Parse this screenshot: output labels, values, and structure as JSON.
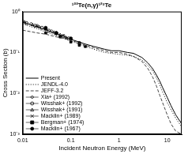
{
  "chart_data": {
    "type": "line",
    "title": "¹²²Te(n,γ)¹²³Te",
    "x_label": "Incident Neutron Energy (MeV)",
    "y_label": "Cross Section (b)",
    "log": true,
    "grid": false,
    "legend": "bottom-left",
    "xlim": [
      0.01,
      20
    ],
    "xticks": [
      0.01,
      0.1,
      1,
      10
    ],
    "ylim": [
      0.001,
      1
    ],
    "yticks": [
      {
        "value": 0.001,
        "label": "10⁻³"
      },
      {
        "value": 0.01,
        "label": "10⁻²"
      },
      {
        "value": 0.1,
        "label": "10⁻¹"
      },
      {
        "value": 1,
        "label": "10⁰"
      }
    ],
    "series": [
      {
        "name": "Present",
        "type": "line",
        "line_style": "solid",
        "color": "#000000",
        "x": [
          0.01,
          0.02,
          0.03,
          0.05,
          0.1,
          0.2,
          0.3,
          0.5,
          0.7,
          1,
          1.5,
          2,
          3,
          4,
          5,
          6,
          7,
          8,
          10,
          12,
          15,
          20
        ],
        "values": [
          0.55,
          0.42,
          0.36,
          0.29,
          0.21,
          0.16,
          0.14,
          0.12,
          0.11,
          0.11,
          0.1,
          0.095,
          0.075,
          0.055,
          0.04,
          0.028,
          0.02,
          0.014,
          0.008,
          0.005,
          0.003,
          0.0018
        ]
      },
      {
        "name": "JENDL-4.0",
        "type": "line",
        "line_style": "dotted",
        "color": "#000000",
        "x": [
          0.01,
          0.02,
          0.03,
          0.05,
          0.1,
          0.2,
          0.3,
          0.5,
          0.7,
          1,
          1.5,
          2,
          3,
          4,
          5,
          6,
          7,
          8,
          10,
          12,
          15,
          20
        ],
        "values": [
          0.5,
          0.38,
          0.32,
          0.26,
          0.19,
          0.14,
          0.12,
          0.1,
          0.095,
          0.09,
          0.085,
          0.08,
          0.065,
          0.048,
          0.035,
          0.024,
          0.016,
          0.011,
          0.006,
          0.004,
          0.0025,
          0.0015
        ]
      },
      {
        "name": "JEFF-3.2",
        "type": "line",
        "line_style": "dashed",
        "color": "#444444",
        "x": [
          0.01,
          0.02,
          0.03,
          0.05,
          0.1,
          0.2,
          0.3,
          0.5,
          0.7,
          1,
          1.5,
          2,
          3,
          4,
          5,
          6,
          7,
          8,
          10,
          12,
          15,
          20
        ],
        "values": [
          0.35,
          0.3,
          0.28,
          0.24,
          0.2,
          0.15,
          0.13,
          0.11,
          0.1,
          0.1,
          0.09,
          0.08,
          0.06,
          0.04,
          0.025,
          0.015,
          0.009,
          0.006,
          0.003,
          0.0018,
          0.0012,
          0.001
        ]
      },
      {
        "name": "Xia+ (1992)",
        "type": "scatter",
        "marker": "diamond-open",
        "color": "#000000",
        "x": [
          0.01,
          0.015,
          0.02,
          0.03,
          0.04,
          0.05
        ],
        "values": [
          0.58,
          0.5,
          0.45,
          0.38,
          0.33,
          0.3
        ]
      },
      {
        "name": "Wisshak+ (1992)",
        "type": "scatter",
        "marker": "circle-open",
        "color": "#000000",
        "x": [
          0.012,
          0.018,
          0.025,
          0.035,
          0.05,
          0.07,
          0.09
        ],
        "values": [
          0.52,
          0.45,
          0.4,
          0.34,
          0.29,
          0.25,
          0.22
        ]
      },
      {
        "name": "Wisshak+ (1991)",
        "type": "scatter",
        "marker": "triangle-open",
        "color": "#000000",
        "x": [
          0.011,
          0.016,
          0.022,
          0.03,
          0.045,
          0.06,
          0.08,
          0.1
        ],
        "values": [
          0.55,
          0.47,
          0.42,
          0.37,
          0.31,
          0.27,
          0.23,
          0.21
        ]
      },
      {
        "name": "Macklin+ (1989)",
        "type": "scatter",
        "marker": "x",
        "color": "#000000",
        "x": [
          0.02,
          0.03,
          0.05,
          0.07
        ],
        "values": [
          0.44,
          0.36,
          0.3,
          0.26
        ]
      },
      {
        "name": "Bergman+ (1974)",
        "type": "scatter",
        "marker": "square",
        "color": "#000000",
        "x": [
          0.03,
          0.06,
          0.1,
          0.15,
          0.2
        ],
        "values": [
          0.3,
          0.24,
          0.18,
          0.15,
          0.14
        ]
      },
      {
        "name": "Macklin+ (1967)",
        "type": "scatter",
        "marker": "circle",
        "color": "#000000",
        "x": [
          0.03,
          0.05,
          0.1,
          0.15
        ],
        "values": [
          0.4,
          0.3,
          0.22,
          0.17
        ]
      }
    ]
  }
}
